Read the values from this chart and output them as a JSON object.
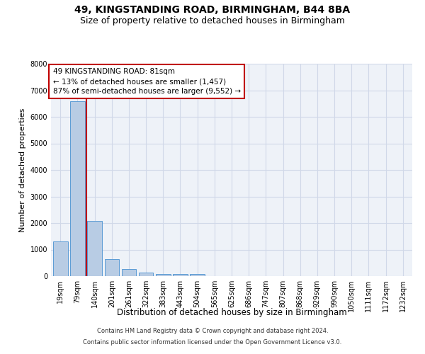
{
  "title1": "49, KINGSTANDING ROAD, BIRMINGHAM, B44 8BA",
  "title2": "Size of property relative to detached houses in Birmingham",
  "xlabel": "Distribution of detached houses by size in Birmingham",
  "ylabel": "Number of detached properties",
  "categories": [
    "19sqm",
    "79sqm",
    "140sqm",
    "201sqm",
    "261sqm",
    "322sqm",
    "383sqm",
    "443sqm",
    "504sqm",
    "565sqm",
    "625sqm",
    "686sqm",
    "747sqm",
    "807sqm",
    "868sqm",
    "929sqm",
    "990sqm",
    "1050sqm",
    "1111sqm",
    "1172sqm",
    "1232sqm"
  ],
  "values": [
    1300,
    6600,
    2080,
    650,
    280,
    130,
    90,
    70,
    90,
    0,
    0,
    0,
    0,
    0,
    0,
    0,
    0,
    0,
    0,
    0,
    0
  ],
  "bar_color": "#b8cce4",
  "bar_edge_color": "#5b9bd5",
  "vline_color": "#c00000",
  "annotation_text": "49 KINGSTANDING ROAD: 81sqm\n← 13% of detached houses are smaller (1,457)\n87% of semi-detached houses are larger (9,552) →",
  "annotation_box_color": "white",
  "annotation_box_edge": "#c00000",
  "ylim": [
    0,
    8000
  ],
  "yticks": [
    0,
    1000,
    2000,
    3000,
    4000,
    5000,
    6000,
    7000,
    8000
  ],
  "grid_color": "#d0d8e8",
  "bg_color": "#eef2f8",
  "footer1": "Contains HM Land Registry data © Crown copyright and database right 2024.",
  "footer2": "Contains public sector information licensed under the Open Government Licence v3.0.",
  "title1_fontsize": 10,
  "title2_fontsize": 9,
  "xlabel_fontsize": 8.5,
  "ylabel_fontsize": 8,
  "tick_fontsize": 7,
  "annotation_fontsize": 7.5,
  "footer_fontsize": 6
}
